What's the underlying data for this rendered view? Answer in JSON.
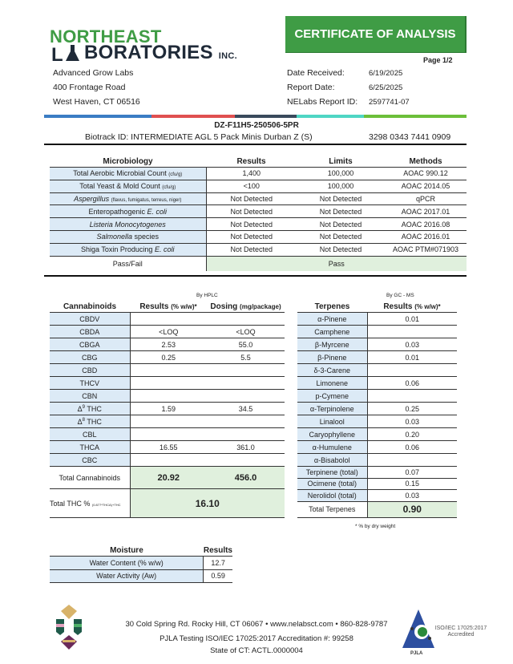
{
  "header": {
    "logo_line1": "NORTHEAST",
    "logo_line2": "BORATORIES",
    "logo_suffix": "INC.",
    "title": "CERTIFICATE OF ANALYSIS",
    "page": "Page 1/2"
  },
  "client": {
    "name": "Advanced Grow Labs",
    "street": "400 Frontage Road",
    "city": "West Haven, CT 06516"
  },
  "report": {
    "date_received_label": "Date Received:",
    "date_received": "6/19/2025",
    "report_date_label": "Report Date:",
    "report_date": "6/25/2025",
    "report_id_label": "NELabs Report ID:",
    "report_id": "2597741-07"
  },
  "colors": {
    "brand_green": "#3f9c45",
    "bar": [
      "#3b7dc4",
      "#e05050",
      "#3a4a5c",
      "#4fd6c4",
      "#6cbf3a"
    ]
  },
  "sample": {
    "code": "DZ-F11H5-250506-5PR",
    "biotrack": "Biotrack ID:  INTERMEDIATE AGL 5 Pack Minis Durban Z (S)",
    "biotrack_number": "3298 0343 7441 0909"
  },
  "micro": {
    "headers": [
      "Microbiology",
      "Results",
      "Limits",
      "Methods"
    ],
    "rows": [
      {
        "name": "Total Aerobic Microbial Count",
        "unit": "(cfu/g)",
        "result": "1,400",
        "limit": "100,000",
        "method": "AOAC 990.12"
      },
      {
        "name": "Total Yeast & Mold Count",
        "unit": "(cfu/g)",
        "result": "<100",
        "limit": "100,000",
        "method": "AOAC 2014.05"
      },
      {
        "name": "Aspergillus",
        "unit": "(flavus, fumigatus, terreus, niger)",
        "result": "Not Detected",
        "limit": "Not Detected",
        "method": "qPCR"
      },
      {
        "name": "Enteropathogenic ",
        "italic": "E. coli",
        "result": "Not Detected",
        "limit": "Not Detected",
        "method": "AOAC 2017.01"
      },
      {
        "name": "Listeria Monocytogenes",
        "result": "Not Detected",
        "limit": "Not Detected",
        "method": "AOAC 2016.08"
      },
      {
        "name": "Salmonella",
        "suffix": " species",
        "result": "Not Detected",
        "limit": "Not Detected",
        "method": "AOAC 2016.01"
      },
      {
        "name": "Shiga Toxin Producing ",
        "italic": "E. coli",
        "result": "Not Detected",
        "limit": "Not Detected",
        "method": "AOAC PTM#071903"
      }
    ],
    "passfail_label": "Pass/Fail",
    "passfail": "Pass"
  },
  "cannabinoids": {
    "method": "By HPLC",
    "headers": [
      "Cannabinoids",
      "Results",
      "(% w/w)*",
      "Dosing",
      "(mg/package)"
    ],
    "rows": [
      {
        "name": "CBDV",
        "result": "",
        "dose": ""
      },
      {
        "name": "CBDA",
        "result": "<LOQ",
        "dose": "<LOQ"
      },
      {
        "name": "CBGA",
        "result": "2.53",
        "dose": "55.0"
      },
      {
        "name": "CBG",
        "result": "0.25",
        "dose": "5.5"
      },
      {
        "name": "CBD",
        "result": "",
        "dose": ""
      },
      {
        "name": "THCV",
        "result": "",
        "dose": ""
      },
      {
        "name": "CBN",
        "result": "",
        "dose": ""
      },
      {
        "name": "Δ",
        "sup": "9",
        "suffix": " THC",
        "result": "1.59",
        "dose": "34.5"
      },
      {
        "name": "Δ",
        "sup": "8",
        "suffix": " THC",
        "result": "",
        "dose": ""
      },
      {
        "name": "CBL",
        "result": "",
        "dose": ""
      },
      {
        "name": "THCA",
        "result": "16.55",
        "dose": "361.0"
      },
      {
        "name": "CBC",
        "result": "",
        "dose": ""
      }
    ],
    "total_label": "Total Cannabinoids",
    "total_result": "20.92",
    "total_dose": "456.0",
    "thc_label": "Total THC %",
    "thc_formula": "(0.877*THCA)+THC",
    "thc_total": "16.10"
  },
  "terpenes": {
    "method": "By GC - MS",
    "headers": [
      "Terpenes",
      "Results",
      "(% w/w)*"
    ],
    "rows": [
      {
        "name": "α-Pinene",
        "result": "0.01"
      },
      {
        "name": "Camphene",
        "result": ""
      },
      {
        "name": "β-Myrcene",
        "result": "0.03"
      },
      {
        "name": "β-Pinene",
        "result": "0.01"
      },
      {
        "name": "δ-3-Carene",
        "result": ""
      },
      {
        "name": "Limonene",
        "result": "0.06"
      },
      {
        "name": "p-Cymene",
        "result": ""
      },
      {
        "name": "α-Terpinolene",
        "result": "0.25"
      },
      {
        "name": "Linalool",
        "result": "0.03"
      },
      {
        "name": "Caryophyllene",
        "result": "0.20"
      },
      {
        "name": "α-Humulene",
        "result": "0.06"
      },
      {
        "name": "α-Bisabolol",
        "result": ""
      }
    ],
    "totals": [
      {
        "name": "Terpinene (total)",
        "result": "0.07"
      },
      {
        "name": "Ocimene (total)",
        "result": "0.15"
      },
      {
        "name": "Nerolidol (total)",
        "result": "0.03"
      }
    ],
    "total_label": "Total Terpenes",
    "total": "0.90",
    "footnote": "* % by dry weight"
  },
  "moisture": {
    "headers": [
      "Moisture",
      "Results"
    ],
    "rows": [
      {
        "name": "Water Content (% w/w)",
        "result": "12.7"
      },
      {
        "name": "Water Activity (Aw)",
        "result": "0.59"
      }
    ]
  },
  "footer": {
    "line1": "30 Cold Spring Rd. Rocky Hill, CT 06067  •  www.nelabsct.com  •  860-828-9787",
    "line2": "PJLA Testing ISO/IEC 17025:2017 Accreditation #: 99258",
    "line3": "State of CT: ACTL.0000004",
    "pjla_logo": "PJLA",
    "pjla_note": "ISO/IEC 17025:2017 Accredited"
  }
}
